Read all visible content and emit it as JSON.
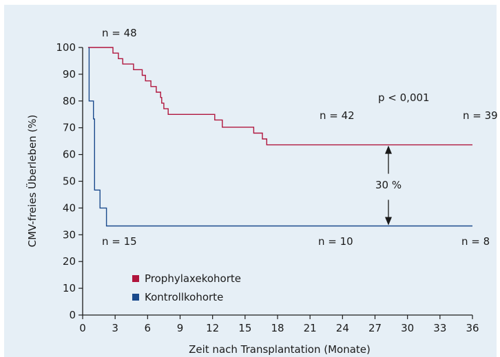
{
  "chart_data": {
    "type": "line",
    "title": "",
    "xlabel": "Zeit nach Transplantation (Monate)",
    "ylabel": "CMV-freies Überleben (%)",
    "xlim": [
      0,
      36
    ],
    "ylim": [
      0,
      100
    ],
    "xticks": [
      0,
      3,
      6,
      9,
      12,
      15,
      18,
      21,
      24,
      27,
      30,
      33,
      36
    ],
    "yticks": [
      0,
      10,
      20,
      30,
      40,
      50,
      60,
      70,
      80,
      90,
      100
    ],
    "grid": false,
    "legend_position": "bottom-left",
    "series": [
      {
        "name": "Prophylaxekohorte",
        "color": "#b0143c",
        "step": true,
        "points": [
          [
            0.5,
            100
          ],
          [
            2.8,
            100
          ],
          [
            2.8,
            97.9
          ],
          [
            3.3,
            97.9
          ],
          [
            3.3,
            95.8
          ],
          [
            3.7,
            95.8
          ],
          [
            3.7,
            93.8
          ],
          [
            4.7,
            93.8
          ],
          [
            4.7,
            91.7
          ],
          [
            5.5,
            91.7
          ],
          [
            5.5,
            89.6
          ],
          [
            5.8,
            89.6
          ],
          [
            5.8,
            87.5
          ],
          [
            6.3,
            87.5
          ],
          [
            6.3,
            85.4
          ],
          [
            6.8,
            85.4
          ],
          [
            6.8,
            83.3
          ],
          [
            7.2,
            83.3
          ],
          [
            7.2,
            81.3
          ],
          [
            7.3,
            81.3
          ],
          [
            7.3,
            79.2
          ],
          [
            7.5,
            79.2
          ],
          [
            7.5,
            77.1
          ],
          [
            7.9,
            77.1
          ],
          [
            7.9,
            75.0
          ],
          [
            12.2,
            75.0
          ],
          [
            12.2,
            72.9
          ],
          [
            12.9,
            72.9
          ],
          [
            12.9,
            70.2
          ],
          [
            15.8,
            70.2
          ],
          [
            15.8,
            68.0
          ],
          [
            16.6,
            68.0
          ],
          [
            16.6,
            65.8
          ],
          [
            17.0,
            65.8
          ],
          [
            17.0,
            63.6
          ],
          [
            36,
            63.6
          ]
        ]
      },
      {
        "name": "Kontrollkohorte",
        "color": "#1a4a8c",
        "step": true,
        "points": [
          [
            0.6,
            100
          ],
          [
            0.6,
            80
          ],
          [
            1.0,
            80
          ],
          [
            1.0,
            73.3
          ],
          [
            1.1,
            73.3
          ],
          [
            1.1,
            46.7
          ],
          [
            1.6,
            46.7
          ],
          [
            1.6,
            40
          ],
          [
            2.2,
            40
          ],
          [
            2.2,
            33.3
          ],
          [
            36,
            33.3
          ]
        ]
      }
    ],
    "annotations": {
      "p_value": "p < 0,001",
      "difference": "30 %",
      "n_start_prophylaxe": "n = 48",
      "n_mid_prophylaxe": "n = 42",
      "n_end_prophylaxe": "n = 39",
      "n_start_kontrolle": "n = 15",
      "n_mid_kontrolle": "n = 10",
      "n_end_kontrolle": "n = 8"
    }
  }
}
